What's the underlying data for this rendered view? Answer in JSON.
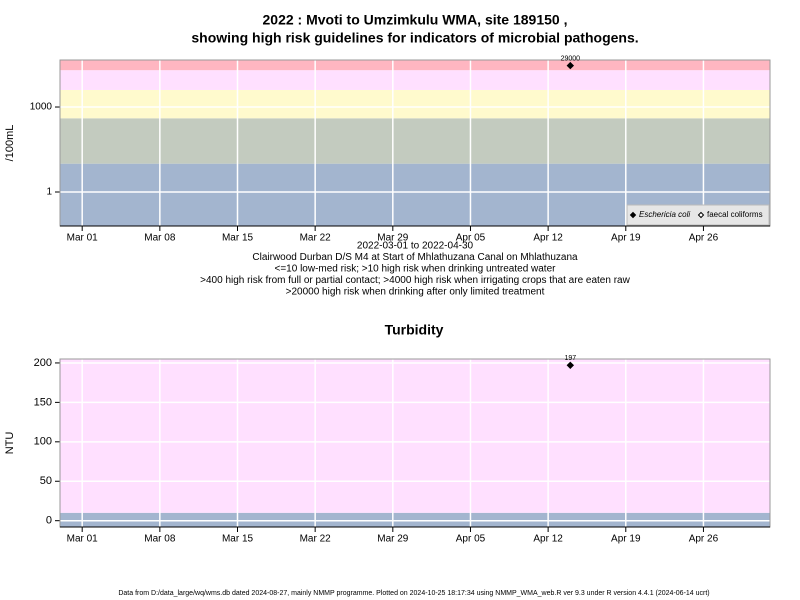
{
  "title": [
    "2022 : Mvoti to Umzimkulu WMA, site 189150 ,",
    "showing high risk guidelines for indicators of microbial pathogens."
  ],
  "footer": "Data from D:/data_large/wq/wms.db dated 2024-08-27, mainly NMMP programme. Plotted on 2024-10-25 18:17:34 using NMMP_WMA_web.R ver 9.3 under R version 4.4.1 (2024-06-14 ucrt)",
  "chart_data": [
    {
      "type": "scatter",
      "ylabel": "/100mL",
      "log_scale": true,
      "grid": true,
      "notes": [
        "2022-03-01 to 2022-04-30",
        "Clairwood Durban D/S M4 at Start of Mhlathuzana Canal on Mhlathuzana",
        "<=10 low-med risk; >10 high risk when drinking untreated water",
        ">400 high risk from full or partial contact; >4000 high risk when irrigating crops that are eaten raw",
        ">20000 high risk when drinking after only limited treatment"
      ],
      "thresholds": [
        10,
        400,
        4000,
        20000
      ],
      "band_colors": [
        "#a3b5cf",
        "#c3cbbf",
        "#fffacd",
        "#ffe0ff",
        "#ffb6c1"
      ],
      "x": [
        "2022-04-14"
      ],
      "series": [
        {
          "name": "Eschericia coli",
          "color": "#000000",
          "filled": true,
          "values": [
            29000
          ]
        },
        {
          "name": "faecal coliforms",
          "color": "#000000",
          "filled": false,
          "values": [
            null
          ]
        }
      ],
      "legend": "bottom right",
      "xlim": [
        "2022-02-27",
        "2022-05-02"
      ],
      "xticks": [
        {
          "value": "2022-03-01",
          "label": "Mar 01"
        },
        {
          "value": "2022-03-08",
          "label": "Mar 08"
        },
        {
          "value": "2022-03-15",
          "label": "Mar 15"
        },
        {
          "value": "2022-03-22",
          "label": "Mar 22"
        },
        {
          "value": "2022-03-29",
          "label": "Mar 29"
        },
        {
          "value": "2022-04-05",
          "label": "Apr 05"
        },
        {
          "value": "2022-04-12",
          "label": "Apr 12"
        },
        {
          "value": "2022-04-19",
          "label": "Apr 19"
        },
        {
          "value": "2022-04-26",
          "label": "Apr 26"
        }
      ],
      "ylim": [
        0.063,
        45700
      ],
      "yticks": [
        1,
        1000
      ]
    },
    {
      "type": "scatter",
      "title": "Turbidity",
      "ylabel": "NTU",
      "log_scale": false,
      "grid": true,
      "thresholds": [
        10
      ],
      "band_colors": [
        "#a3b5cf",
        "#ffe0ff"
      ],
      "x": [
        "2022-04-14"
      ],
      "series": [
        {
          "name": "Turbidity",
          "color": "#000000",
          "filled": true,
          "values": [
            197
          ]
        }
      ],
      "xlim": [
        "2022-02-27",
        "2022-05-02"
      ],
      "xticks": [
        {
          "value": "2022-03-01",
          "label": "Mar 01"
        },
        {
          "value": "2022-03-08",
          "label": "Mar 08"
        },
        {
          "value": "2022-03-15",
          "label": "Mar 15"
        },
        {
          "value": "2022-03-22",
          "label": "Mar 22"
        },
        {
          "value": "2022-03-29",
          "label": "Mar 29"
        },
        {
          "value": "2022-04-05",
          "label": "Apr 05"
        },
        {
          "value": "2022-04-12",
          "label": "Apr 12"
        },
        {
          "value": "2022-04-19",
          "label": "Apr 19"
        },
        {
          "value": "2022-04-26",
          "label": "Apr 26"
        }
      ],
      "ylim": [
        -8,
        205
      ],
      "yticks": [
        0,
        50,
        100,
        150,
        200
      ]
    }
  ]
}
